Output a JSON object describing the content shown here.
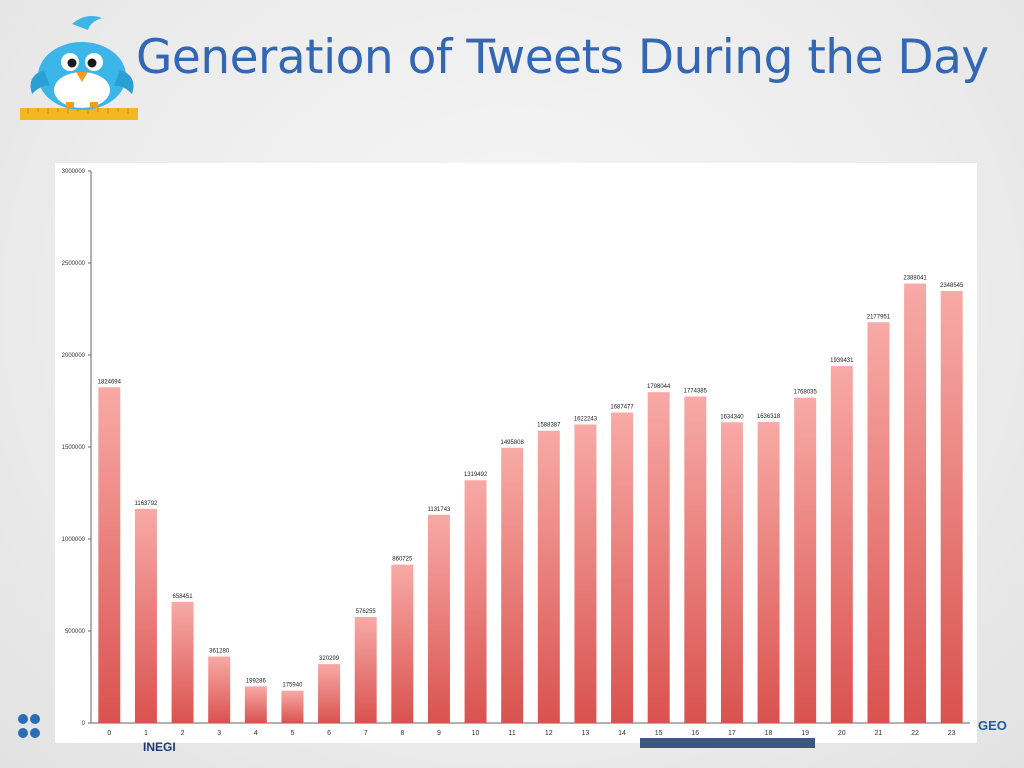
{
  "slide": {
    "title": "Generation of Tweets During the Day",
    "footer_org": "INEGI",
    "footer_geo": "GEO"
  },
  "colors": {
    "title": "#3366b3",
    "bar_top": "#f8aaa6",
    "bar_bottom": "#d9524f",
    "axis": "#666666"
  },
  "chart_data": {
    "type": "bar",
    "title": "",
    "xlabel": "",
    "ylabel": "",
    "categories": [
      "0",
      "1",
      "2",
      "3",
      "4",
      "5",
      "6",
      "7",
      "8",
      "9",
      "10",
      "11",
      "12",
      "13",
      "14",
      "15",
      "16",
      "17",
      "18",
      "19",
      "20",
      "21",
      "22",
      "23"
    ],
    "values": [
      1824694,
      1163792,
      658451,
      361280,
      199286,
      175940,
      320299,
      576255,
      860725,
      1131743,
      1319492,
      1495808,
      1588387,
      1622243,
      1687477,
      1798044,
      1774385,
      1634340,
      1636318,
      1768035,
      1939431,
      2177951,
      2388041,
      2348545
    ],
    "ylim": [
      0,
      3000000
    ],
    "yticks": [
      "0",
      "500000",
      "1000000",
      "1500000",
      "2000000",
      "2500000",
      "3000000"
    ],
    "grid": false,
    "legend": "none"
  }
}
